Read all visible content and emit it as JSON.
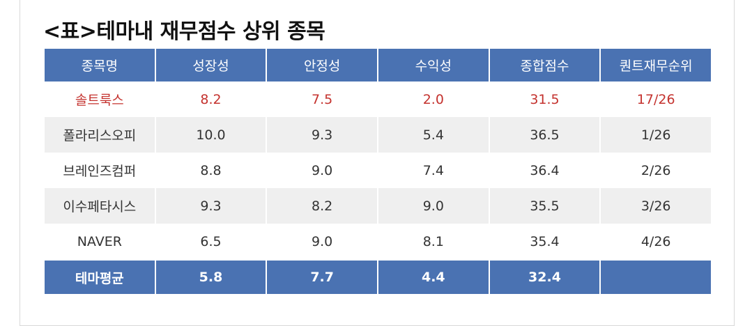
{
  "title": "<표>테마내 재무점수 상위 종목",
  "table": {
    "header": [
      "종목명",
      "성장성",
      "안정성",
      "수익성",
      "종합점수",
      "퀀트재무순위"
    ],
    "rows": [
      [
        "솔트룩스",
        "8.2",
        "7.5",
        "2.0",
        "31.5",
        "17/26"
      ],
      [
        "폴라리스오피",
        "10.0",
        "9.3",
        "5.4",
        "36.5",
        "1/26"
      ],
      [
        "브레인즈컴퍼",
        "8.8",
        "9.0",
        "7.4",
        "36.4",
        "2/26"
      ],
      [
        "이수페타시스",
        "9.3",
        "8.2",
        "9.0",
        "35.5",
        "3/26"
      ],
      [
        "NAVER",
        "6.5",
        "9.0",
        "8.1",
        "35.4",
        "4/26"
      ]
    ],
    "footer": [
      "테마평균",
      "5.8",
      "7.7",
      "4.4",
      "32.4"
    ]
  }
}
